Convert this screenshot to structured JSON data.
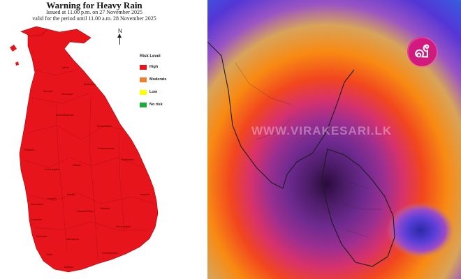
{
  "warning": {
    "title": "Warning  for Heavy Rain",
    "issued": "Issued at 11.00 p.m. on 27 November 2025",
    "valid": "valid for the period until 11.00 a.m. 28 November 2025"
  },
  "compass": {
    "label": "N"
  },
  "legend": {
    "title": "Risk Level",
    "items": [
      {
        "label": "High",
        "color": "#e8141c"
      },
      {
        "label": "Moderate",
        "color": "#f07f2e"
      },
      {
        "label": "Low",
        "color": "#ffff00"
      },
      {
        "label": "No risk",
        "color": "#20a83a"
      }
    ]
  },
  "districts": [
    "Jaffna",
    "Mannar",
    "Vavuniya",
    "Mullaitivu",
    "Anuradhapura",
    "Trincomalee",
    "Puttalam",
    "Kurunegala",
    "Matale",
    "Polonnaruwa",
    "Batticaloa",
    "Kandy",
    "Ampara",
    "Kegalle",
    "Nuwara Eliya",
    "Badulla",
    "Gampaha",
    "Colombo",
    "Kalutara",
    "Ratnapura",
    "Moneragala",
    "Galle",
    "Matara",
    "Hambantota"
  ],
  "colors": {
    "high_risk": "#e8141c",
    "logo_magenta": "#d01a7d"
  },
  "watermark": "WWW.VIRAKESARI.LK",
  "logo": {
    "text": "வீ"
  }
}
